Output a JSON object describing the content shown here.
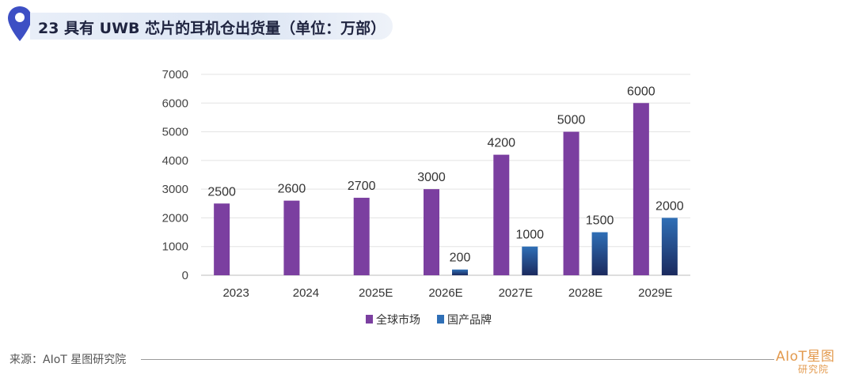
{
  "header": {
    "title": "23 具有 UWB 芯片的耳机仓出货量（单位：万部）"
  },
  "footer": {
    "source": "来源：AIoT 星图研究院",
    "logo_top": "AIoT星图",
    "logo_bottom": "研究院"
  },
  "colors": {
    "series_global": "#7b3fa0",
    "series_domestic_top": "#2f6fb6",
    "series_domestic_bottom": "#1b2a5e",
    "brand": "#e39a4e",
    "title_pin": "#3d4fc4"
  },
  "chart_data": {
    "type": "bar",
    "title": "23 具有 UWB 芯片的耳机仓出货量（单位：万部）",
    "xlabel": "",
    "ylabel": "",
    "categories": [
      "2023",
      "2024",
      "2025E",
      "2026E",
      "2027E",
      "2028E",
      "2029E"
    ],
    "series": [
      {
        "name": "全球市场",
        "values": [
          2500,
          2600,
          2700,
          3000,
          4200,
          5000,
          6000
        ]
      },
      {
        "name": "国产品牌",
        "values": [
          null,
          null,
          null,
          200,
          1000,
          1500,
          2000
        ]
      }
    ],
    "ylim": [
      0,
      7000
    ],
    "yticks": [
      0,
      1000,
      2000,
      3000,
      4000,
      5000,
      6000,
      7000
    ],
    "grid": true,
    "legend": "bottom"
  }
}
